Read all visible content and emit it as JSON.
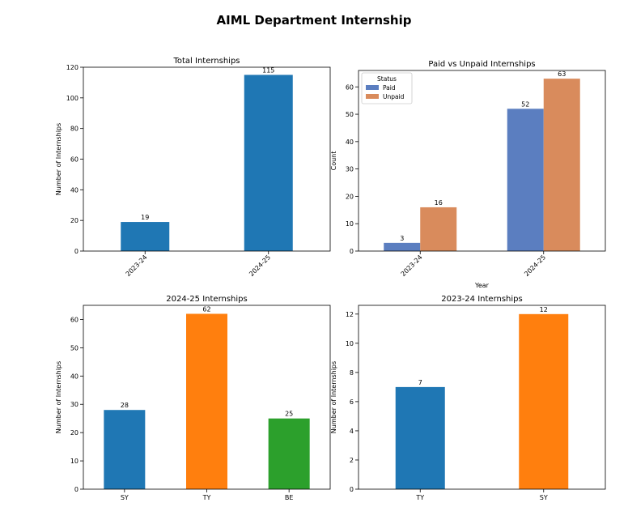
{
  "figure": {
    "title": "AIML Department Internship"
  },
  "chart_data": [
    {
      "type": "bar",
      "title": "Total Internships",
      "xlabel": "",
      "ylabel": "Number of Internships",
      "categories": [
        "2023-24",
        "2024-25"
      ],
      "series": [
        {
          "values": [
            19,
            115
          ],
          "color": "#1f77b4"
        }
      ],
      "data_labels": [
        "19",
        "115"
      ],
      "ylim": [
        0,
        120
      ],
      "yticks": [
        0,
        20,
        40,
        60,
        80,
        100,
        120
      ],
      "xtick_rotation": 45,
      "grid": false
    },
    {
      "type": "bar",
      "title": "Paid vs Unpaid Internships",
      "xlabel": "Year",
      "ylabel": "Count",
      "categories": [
        "2023-24",
        "2024-25"
      ],
      "series": [
        {
          "name": "Paid",
          "values": [
            3,
            52
          ],
          "color": "#5b7ec0"
        },
        {
          "name": "Unpaid",
          "values": [
            16,
            63
          ],
          "color": "#d98b5c"
        }
      ],
      "data_labels": [
        [
          "3",
          "52"
        ],
        [
          "16",
          "63"
        ]
      ],
      "ylim": [
        0,
        66
      ],
      "yticks": [
        0,
        10,
        20,
        30,
        40,
        50,
        60
      ],
      "xtick_rotation": 45,
      "legend": {
        "title": "Status",
        "placement": "top-left"
      },
      "grid": false
    },
    {
      "type": "bar",
      "title": "2024-25 Internships",
      "xlabel": "",
      "ylabel": "Number of Internships",
      "categories": [
        "SY",
        "TY",
        "BE"
      ],
      "series": [
        {
          "values": [
            28,
            62,
            25
          ],
          "colors": [
            "#1f77b4",
            "#ff7f0e",
            "#2ca02c"
          ]
        }
      ],
      "data_labels": [
        "28",
        "62",
        "25"
      ],
      "ylim": [
        0,
        65
      ],
      "yticks": [
        0,
        10,
        20,
        30,
        40,
        50,
        60
      ],
      "xtick_rotation": 0,
      "grid": false
    },
    {
      "type": "bar",
      "title": "2023-24 Internships",
      "xlabel": "",
      "ylabel": "Number of Internships",
      "categories": [
        "TY",
        "SY"
      ],
      "series": [
        {
          "values": [
            7,
            12
          ],
          "colors": [
            "#1f77b4",
            "#ff7f0e"
          ]
        }
      ],
      "data_labels": [
        "7",
        "12"
      ],
      "ylim": [
        0,
        12.6
      ],
      "yticks": [
        0,
        2,
        4,
        6,
        8,
        10,
        12
      ],
      "xtick_rotation": 0,
      "grid": false
    }
  ]
}
